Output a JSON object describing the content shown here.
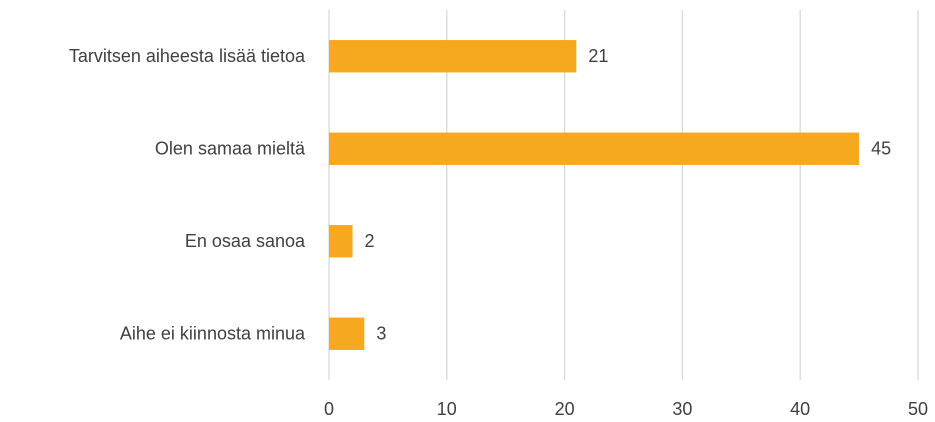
{
  "chart_data": {
    "type": "bar",
    "orientation": "horizontal",
    "categories": [
      "Tarvitsen aiheesta lisää tietoa",
      "Olen samaa mieltä",
      "En osaa sanoa",
      "Aihe ei kiinnosta minua"
    ],
    "values": [
      21,
      45,
      2,
      3
    ],
    "color": "#f6a81e",
    "xlim": [
      0,
      50
    ],
    "xticks": [
      0,
      10,
      20,
      30,
      40,
      50
    ],
    "grid": true
  }
}
